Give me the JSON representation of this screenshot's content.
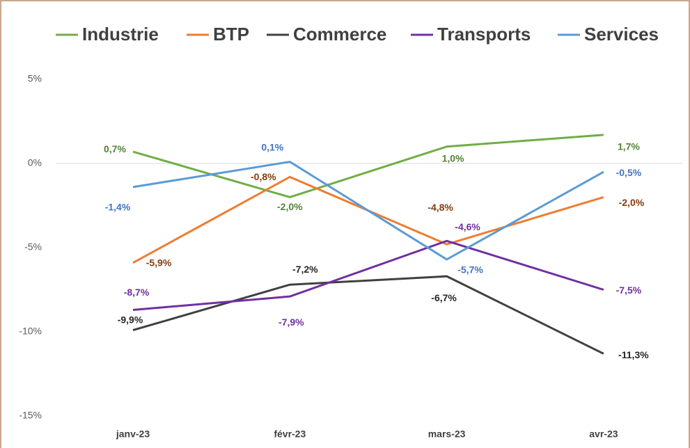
{
  "chart_data": {
    "type": "line",
    "categories": [
      "janv-23",
      "févr-23",
      "mars-23",
      "avr-23"
    ],
    "series": [
      {
        "name": "Industrie",
        "color": "#70ad47",
        "label_color": "#548235",
        "values": [
          0.7,
          -2.0,
          1.0,
          1.7
        ],
        "value_labels": [
          "0,7%",
          "-2,0%",
          "1,0%",
          "1,7%"
        ]
      },
      {
        "name": "BTP",
        "color": "#ed7d31",
        "label_color": "#843c0c",
        "values": [
          -5.9,
          -0.8,
          -4.8,
          -2.0
        ],
        "value_labels": [
          "-5,9%",
          "-0,8%",
          "-4,8%",
          "-2,0%"
        ]
      },
      {
        "name": "Commerce",
        "color": "#404040",
        "label_color": "#262626",
        "values": [
          -9.9,
          -7.2,
          -6.7,
          -11.3
        ],
        "value_labels": [
          "-9,9%",
          "-7,2%",
          "-6,7%",
          "-11,3%"
        ]
      },
      {
        "name": "Transports",
        "color": "#7030a0",
        "label_color": "#7030a0",
        "values": [
          -8.7,
          -7.9,
          -4.6,
          -7.5
        ],
        "value_labels": [
          "-8,7%",
          "-7,9%",
          "-4,6%",
          "-7,5%"
        ]
      },
      {
        "name": "Services",
        "color": "#5b9bd5",
        "label_color": "#4472c4",
        "values": [
          -1.4,
          0.1,
          -5.7,
          -0.5
        ],
        "value_labels": [
          "-1,4%",
          "0,1%",
          "-5,7%",
          "-0,5%"
        ]
      }
    ],
    "ylim": [
      -15,
      5
    ],
    "yticks": [
      {
        "value": 5,
        "label": "5%"
      },
      {
        "value": 0,
        "label": "0%"
      },
      {
        "value": -5,
        "label": "-5%"
      },
      {
        "value": -10,
        "label": "-10%"
      },
      {
        "value": -15,
        "label": "-15%"
      }
    ],
    "legend": "top"
  }
}
